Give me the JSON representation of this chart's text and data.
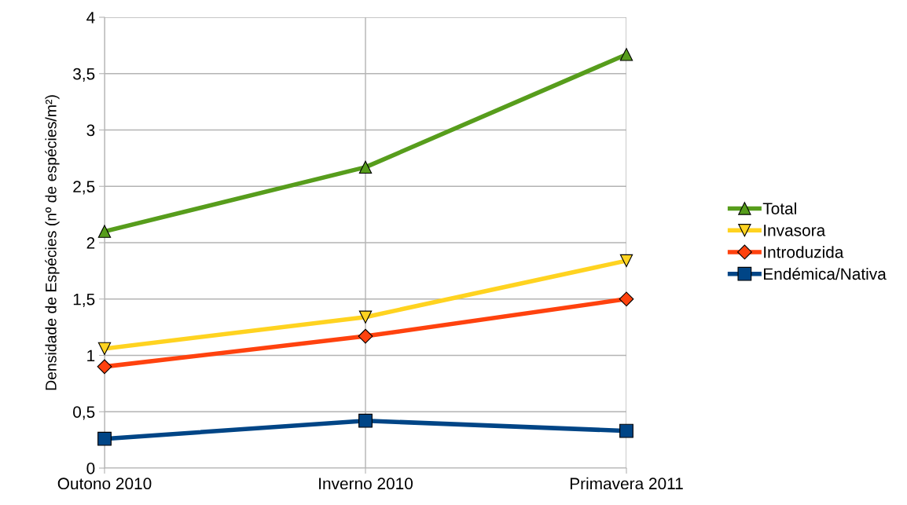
{
  "chart_data": {
    "type": "line",
    "ylabel": "Densidade de Espécies (nº de espécies/m²)",
    "categories": [
      "Outono 2010",
      "Inverno 2010",
      "Primavera 2011"
    ],
    "series": [
      {
        "name": "Total",
        "color": "#579d1c",
        "marker": "triangle",
        "values": [
          2.1,
          2.67,
          3.67
        ]
      },
      {
        "name": "Invasora",
        "color": "#ffd320",
        "marker": "triangle_down",
        "values": [
          1.06,
          1.34,
          1.84
        ]
      },
      {
        "name": "Introduzida",
        "color": "#ff420e",
        "marker": "diamond",
        "values": [
          0.9,
          1.17,
          1.5
        ]
      },
      {
        "name": "Endémica/Nativa",
        "color": "#004586",
        "marker": "square",
        "values": [
          0.26,
          0.42,
          0.33
        ]
      }
    ],
    "ylim": [
      0,
      4
    ],
    "yticks": [
      0,
      {
        "value": 0.5,
        "label": "0,5"
      },
      1,
      {
        "value": 1.5,
        "label": "1,5"
      },
      2,
      {
        "value": 2.5,
        "label": "2,5"
      },
      3,
      {
        "value": 3.5,
        "label": "3,5"
      },
      4
    ],
    "grid": true,
    "legend": "right"
  }
}
